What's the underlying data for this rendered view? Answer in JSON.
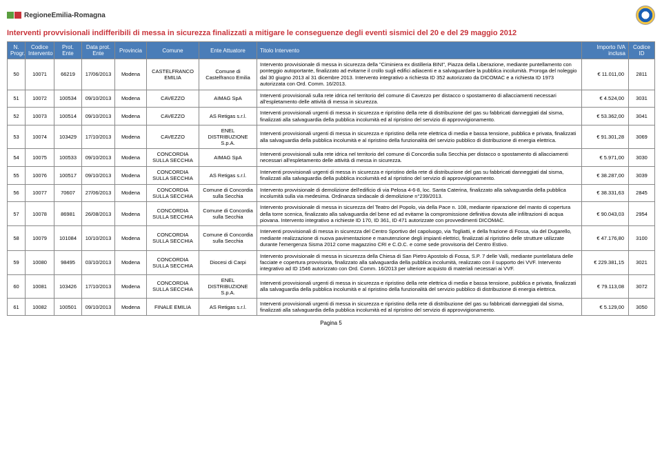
{
  "header": {
    "region": "RegioneEmilia-Romagna",
    "title": "Interventi provvisionali indifferibili di messa in sicurezza finalizzati a mitigare le conseguenze degli eventi sismici del 20 e del 29 maggio 2012"
  },
  "columns": [
    "N. Progr.",
    "Codice Intervento",
    "Prot. Ente",
    "Data prot. Ente",
    "Provincia",
    "Comune",
    "Ente Attuatore",
    "Titolo Intervento",
    "Importo IVA inclusa",
    "Codice ID"
  ],
  "rows": [
    {
      "n": "50",
      "cod": "10071",
      "prot": "66219",
      "data": "17/06/2013",
      "prov": "Modena",
      "com": "CASTELFRANCO EMILIA",
      "ente": "Comune di Castelfranco Emilia",
      "titolo": "Intervento provvisionale di messa in sicurezza della \"Ciminiera ex distilleria BINI\", Piazza della Liberazione, mediante puntellamento con ponteggio autoportante, finalizzato ad evitarne il crollo sugli edifici adiacenti e a salvaguardare la pubblica incolumità. Proroga del noleggio dal 30 giugno 2013 al 31 dicembre 2013. Intervento integrativo a richiesta ID 352 autorizzato da DICOMAC e a richiesta ID 1973 autorizzata con Ord. Comm. 16/2013.",
      "imp": "€       11.011,00",
      "id": "2811"
    },
    {
      "n": "51",
      "cod": "10072",
      "prot": "100534",
      "data": "09/10/2013",
      "prov": "Modena",
      "com": "CAVEZZO",
      "ente": "AIMAG SpA",
      "titolo": "Interventi provvisionali sulla rete idrica nel territorio del comune di Cavezzo per distacco o spostamento di allacciamenti necessari all'espletamento delle attività di messa in sicurezza.",
      "imp": "€         4.524,00",
      "id": "3031"
    },
    {
      "n": "52",
      "cod": "10073",
      "prot": "100514",
      "data": "09/10/2013",
      "prov": "Modena",
      "com": "CAVEZZO",
      "ente": "AS Retigas s.r.l.",
      "titolo": "Interventi provvisionali urgenti di messa in sicurezza e ripristino della rete di distribuzione del gas su fabbricati danneggiati dal sisma, finalizzati alla salvaguardia della pubblica incolumità ed al ripristino del servizio di approvvigionamento.",
      "imp": "€       53.362,00",
      "id": "3041"
    },
    {
      "n": "53",
      "cod": "10074",
      "prot": "103429",
      "data": "17/10/2013",
      "prov": "Modena",
      "com": "CAVEZZO",
      "ente": "ENEL DISTRIBUZIONE S.p.A.",
      "titolo": "Interventi provvisionali urgenti di messa in sicurezza e ripristino della rete elettrica di media e bassa tensione, pubblica e privata, finalizzati alla salvaguardia della pubblica incolumità e al ripristino della funzionalità del servizio pubblico di distribuzione di energia elettrica.",
      "imp": "€       91.301,28",
      "id": "3069"
    },
    {
      "n": "54",
      "cod": "10075",
      "prot": "100533",
      "data": "09/10/2013",
      "prov": "Modena",
      "com": "CONCORDIA SULLA SECCHIA",
      "ente": "AIMAG SpA",
      "titolo": "Interventi provvisionali sulla rete idrica nel territorio del comune di Concordia sulla Secchia per distacco o spostamento di allacciamenti necessari all'espletamento delle attività di messa in sicurezza.",
      "imp": "€         5.971,00",
      "id": "3030"
    },
    {
      "n": "55",
      "cod": "10076",
      "prot": "100517",
      "data": "09/10/2013",
      "prov": "Modena",
      "com": "CONCORDIA SULLA SECCHIA",
      "ente": "AS Retigas s.r.l.",
      "titolo": "Interventi provvisionali urgenti di messa in sicurezza e ripristino della rete di distribuzione del gas su fabbricati danneggiati dal sisma, finalizzati alla salvaguardia della pubblica incolumità ed al ripristino del servizio di approvvigionamento.",
      "imp": "€       38.287,00",
      "id": "3039"
    },
    {
      "n": "56",
      "cod": "10077",
      "prot": "70607",
      "data": "27/06/2013",
      "prov": "Modena",
      "com": "CONCORDIA SULLA SECCHIA",
      "ente": "Comune di Concordia sulla Secchia",
      "titolo": "Intervento provvisionale di demolizione dell'edificio di via Pelosa 4-6-8, loc. Santa Caterina, finalizzato alla salvaguardia della pubblica incolumità sulla via medesima. Ordinanza sindacale di demolizione n°239/2013.",
      "imp": "€       38.331,63",
      "id": "2845"
    },
    {
      "n": "57",
      "cod": "10078",
      "prot": "86981",
      "data": "26/08/2013",
      "prov": "Modena",
      "com": "CONCORDIA SULLA SECCHIA",
      "ente": "Comune di Concordia sulla Secchia",
      "titolo": "Intervento provvisionale di messa in sicurezza del Teatro del Popolo, via della Pace n. 108, mediante riparazione del manto di copertura della torre scenica, finalizzato alla salvaguardia del bene ed ad evitarne la compromissione definitiva dovuta alle infiltrazioni di acqua piovana. Intervento integrativo a richieste ID 170, ID 361, ID 471 autorizzate con provvedimenti DICOMAC.",
      "imp": "€       90.043,03",
      "id": "2954"
    },
    {
      "n": "58",
      "cod": "10079",
      "prot": "101084",
      "data": "10/10/2013",
      "prov": "Modena",
      "com": "CONCORDIA SULLA SECCHIA",
      "ente": "Comune di Concordia sulla Secchia",
      "titolo": "Interventi provvisionali di messa in sicurezza del Centro Sportivo del capoluogo, via Togliatti, e della frazione di Fossa, via del Dugarello, mediante realizzazione di nuova pavimentazione e manutenzione degli impianti elettrici, finalizzati al ripristino delle strutture utilizzate durante l'emergenza Sisma 2012 come magazzino CRI e C.O.C. e come sede provvisoria del Centro Estivo.",
      "imp": "€       47.176,80",
      "id": "3100"
    },
    {
      "n": "59",
      "cod": "10080",
      "prot": "98495",
      "data": "03/10/2013",
      "prov": "Modena",
      "com": "CONCORDIA SULLA SECCHIA",
      "ente": "Diocesi di Carpi",
      "titolo": "Intervento provvisionale di messa in sicurezza della Chiesa di San Pietro Apostolo di Fossa, S.P. 7 delle Valli, mediante puntellatura delle facciate e copertura provvisoria, finalizzato alla salvaguardia della pubblica incolumità, realizzato con il supporto dei VVF. Intervento integrativo ad ID 1546 autorizzato con Ord. Comm. 16/2013 per ulteriore acquisto di materiali necessari ai VVF.",
      "imp": "€     229.381,15",
      "id": "3021"
    },
    {
      "n": "60",
      "cod": "10081",
      "prot": "103426",
      "data": "17/10/2013",
      "prov": "Modena",
      "com": "CONCORDIA SULLA SECCHIA",
      "ente": "ENEL DISTRIBUZIONE S.p.A.",
      "titolo": "Interventi provvisionali urgenti di messa in sicurezza e ripristino della rete elettrica di media e bassa tensione, pubblica e privata, finalizzati alla salvaguardia della pubblica incolumità e al ripristino della funzionalità del servizio pubblico di distribuzione di energia elettrica.",
      "imp": "€       79.113,08",
      "id": "3072"
    },
    {
      "n": "61",
      "cod": "10082",
      "prot": "100501",
      "data": "09/10/2013",
      "prov": "Modena",
      "com": "FINALE EMILIA",
      "ente": "AS Retigas s.r.l.",
      "titolo": "Interventi provvisionali urgenti di messa in sicurezza e ripristino della rete di distribuzione del gas su fabbricati danneggiati dal sisma, finalizzati alla salvaguardia della pubblica incolumità ed al ripristino del servizio di approvvigionamento.",
      "imp": "€         5.129,00",
      "id": "3050"
    }
  ],
  "footer": "Pagina 5"
}
